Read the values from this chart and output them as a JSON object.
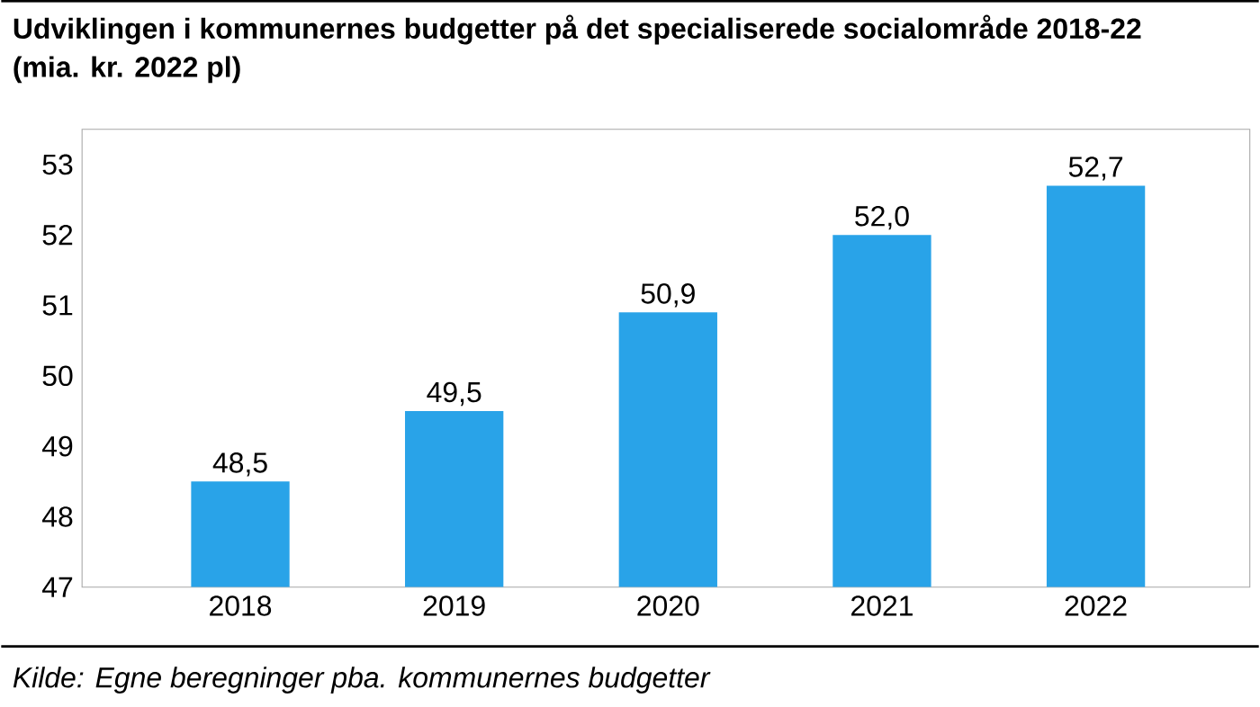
{
  "chart_data": {
    "type": "bar",
    "title": "Udviklingen i kommunernes budgetter på det specialiserede socialområde 2018-22",
    "subtitle": "(mia. kr. 2022 pl)",
    "categories": [
      "2018",
      "2019",
      "2020",
      "2021",
      "2022"
    ],
    "values": [
      48.5,
      49.5,
      50.9,
      52.0,
      52.7
    ],
    "value_labels": [
      "48,5",
      "49,5",
      "50,9",
      "52,0",
      "52,7"
    ],
    "color": "#29a3e8",
    "ylim": [
      47,
      53.5
    ],
    "yticks": [
      47,
      48,
      49,
      50,
      51,
      52,
      53
    ],
    "grid": false,
    "annotations": [
      "Kilde: Egne beregninger pba. kommunernes budgetter"
    ]
  }
}
